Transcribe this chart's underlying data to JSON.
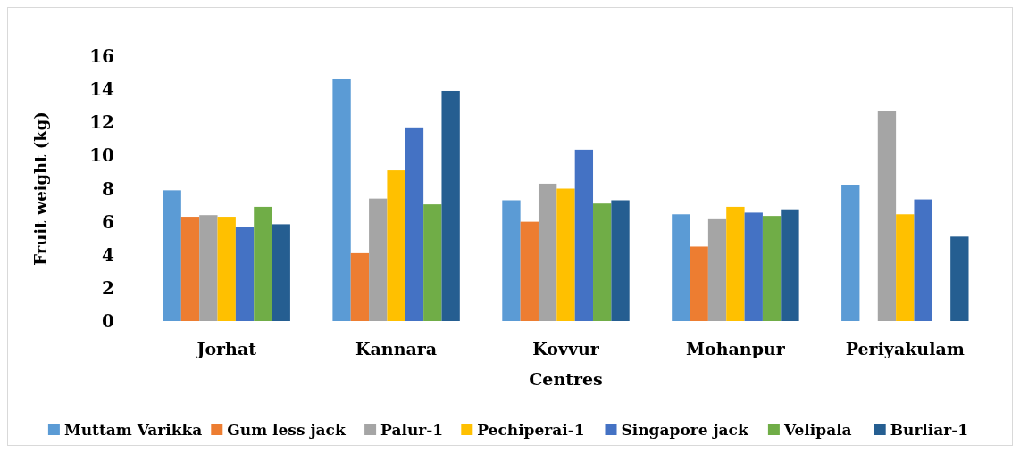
{
  "chart_data": {
    "type": "bar",
    "xlabel": "Centres",
    "ylabel": "Fruit weight (kg)",
    "categories": [
      "Jorhat",
      "Kannara",
      "Kovvur",
      "Mohanpur",
      "Periyakulam"
    ],
    "ylim": [
      0,
      16
    ],
    "yticks": [
      0,
      2,
      4,
      6,
      8,
      10,
      12,
      14,
      16
    ],
    "grid": false,
    "legend": "bottom",
    "series": [
      {
        "name": "Muttam Varikka",
        "color": "#5b9bd5",
        "values": [
          7.9,
          14.6,
          7.3,
          6.45,
          8.2
        ]
      },
      {
        "name": "Gum less jack",
        "color": "#ed7d31",
        "values": [
          6.3,
          4.1,
          6.0,
          4.5,
          0
        ]
      },
      {
        "name": "Palur-1",
        "color": "#a5a5a5",
        "values": [
          6.4,
          7.4,
          8.3,
          6.15,
          12.7
        ]
      },
      {
        "name": "Pechiperai-1",
        "color": "#ffc000",
        "values": [
          6.3,
          9.1,
          8.0,
          6.9,
          6.45
        ]
      },
      {
        "name": "Singapore jack",
        "color": "#4472c4",
        "values": [
          5.7,
          11.7,
          10.35,
          6.55,
          7.35
        ]
      },
      {
        "name": "Velipala",
        "color": "#70ad47",
        "values": [
          6.9,
          7.05,
          7.1,
          6.35,
          0
        ]
      },
      {
        "name": "Burliar-1",
        "color": "#255e91",
        "values": [
          5.85,
          13.9,
          7.3,
          6.75,
          5.1
        ]
      }
    ]
  }
}
